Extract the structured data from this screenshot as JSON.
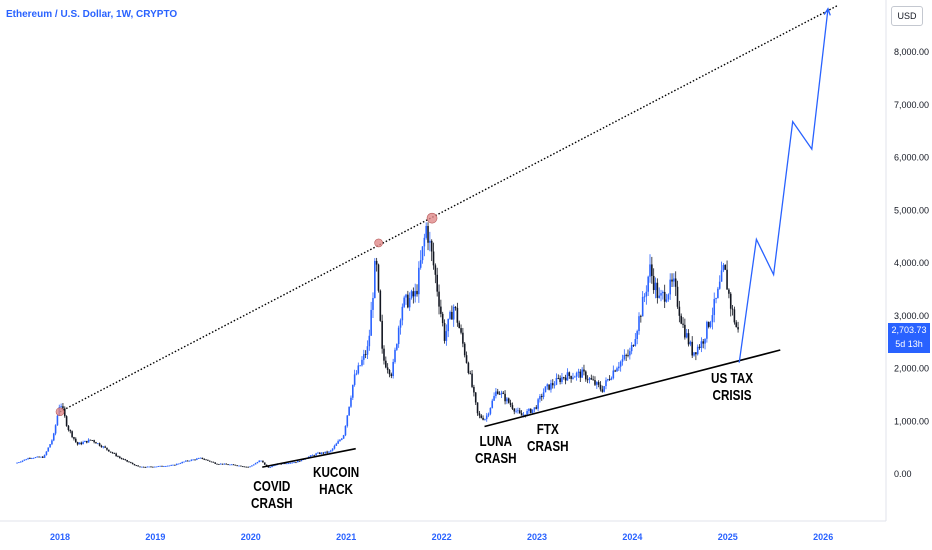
{
  "chart_title": "Ethereum / U.S. Dollar, 1W, CRYPTO",
  "currency_label": "USD",
  "current_price": "2,703.73",
  "countdown": "5d 13h",
  "colors": {
    "up": "#2962ff",
    "down": "#131722",
    "accent": "#2962ff",
    "peak_marker": "#e08a8a"
  },
  "chart_data": {
    "type": "line",
    "title": "Ethereum / U.S. Dollar, 1W, CRYPTO",
    "ylim": [
      -800,
      8800
    ],
    "xlim": [
      2017.55,
      2026.3
    ],
    "y_ticks": [
      0,
      1000,
      2000,
      3000,
      4000,
      5000,
      6000,
      7000,
      8000
    ],
    "y_tick_labels": [
      "0.00",
      "1,000.00",
      "2,000.00",
      "3,000.00",
      "4,000.00",
      "5,000.00",
      "6,000.00",
      "7,000.00",
      "8,000.00"
    ],
    "x_ticks": [
      2018,
      2019,
      2020,
      2021,
      2022,
      2023,
      2024,
      2025,
      2026
    ],
    "x_tick_labels": [
      "2018",
      "2019",
      "2020",
      "2021",
      "2022",
      "2023",
      "2024",
      "2025",
      "2026"
    ],
    "price_path": [
      [
        2017.55,
        200
      ],
      [
        2017.7,
        310
      ],
      [
        2017.85,
        320
      ],
      [
        2017.95,
        700
      ],
      [
        2018.02,
        1380
      ],
      [
        2018.1,
        880
      ],
      [
        2018.2,
        560
      ],
      [
        2018.35,
        650
      ],
      [
        2018.5,
        480
      ],
      [
        2018.65,
        300
      ],
      [
        2018.85,
        130
      ],
      [
        2019.0,
        140
      ],
      [
        2019.2,
        165
      ],
      [
        2019.35,
        250
      ],
      [
        2019.5,
        300
      ],
      [
        2019.65,
        200
      ],
      [
        2019.85,
        170
      ],
      [
        2020.0,
        130
      ],
      [
        2020.12,
        260
      ],
      [
        2020.2,
        120
      ],
      [
        2020.3,
        190
      ],
      [
        2020.5,
        230
      ],
      [
        2020.7,
        380
      ],
      [
        2020.85,
        420
      ],
      [
        2020.99,
        730
      ],
      [
        2021.1,
        1800
      ],
      [
        2021.25,
        2400
      ],
      [
        2021.33,
        4100
      ],
      [
        2021.4,
        2200
      ],
      [
        2021.5,
        1900
      ],
      [
        2021.6,
        3200
      ],
      [
        2021.75,
        3400
      ],
      [
        2021.86,
        4700
      ],
      [
        2021.95,
        3800
      ],
      [
        2022.05,
        2600
      ],
      [
        2022.15,
        3200
      ],
      [
        2022.3,
        2000
      ],
      [
        2022.4,
        1100
      ],
      [
        2022.48,
        1050
      ],
      [
        2022.6,
        1600
      ],
      [
        2022.75,
        1300
      ],
      [
        2022.85,
        1100
      ],
      [
        2023.0,
        1250
      ],
      [
        2023.1,
        1600
      ],
      [
        2023.3,
        1850
      ],
      [
        2023.5,
        1900
      ],
      [
        2023.7,
        1600
      ],
      [
        2023.85,
        2050
      ],
      [
        2024.0,
        2300
      ],
      [
        2024.15,
        3400
      ],
      [
        2024.2,
        3900
      ],
      [
        2024.3,
        3300
      ],
      [
        2024.45,
        3600
      ],
      [
        2024.55,
        2800
      ],
      [
        2024.65,
        2300
      ],
      [
        2024.75,
        2500
      ],
      [
        2024.9,
        3300
      ],
      [
        2024.98,
        3900
      ],
      [
        2025.05,
        3200
      ],
      [
        2025.12,
        2700
      ]
    ],
    "projection": [
      [
        2025.12,
        2110
      ],
      [
        2025.3,
        4450
      ],
      [
        2025.48,
        3780
      ],
      [
        2025.68,
        6680
      ],
      [
        2025.88,
        6160
      ],
      [
        2026.05,
        8820
      ]
    ],
    "resistance_line": [
      [
        2018.0,
        1180
      ],
      [
        2026.15,
        8880
      ]
    ],
    "support_lines": [
      [
        [
          2020.12,
          130
        ],
        [
          2021.1,
          480
        ]
      ],
      [
        [
          2022.45,
          900
        ],
        [
          2025.55,
          2350
        ]
      ]
    ],
    "peak_markers": [
      [
        2018.0,
        1180
      ],
      [
        2021.34,
        4380
      ],
      [
        2021.9,
        4850
      ]
    ],
    "annotations": [
      {
        "label": [
          "COVID",
          "CRASH"
        ]
      },
      {
        "label": [
          "KUCOIN",
          "HACK"
        ]
      },
      {
        "label": [
          "LUNA",
          "CRASH"
        ]
      },
      {
        "label": [
          "FTX",
          "CRASH"
        ]
      },
      {
        "label": [
          "US TAX",
          "CRISIS"
        ]
      }
    ]
  }
}
